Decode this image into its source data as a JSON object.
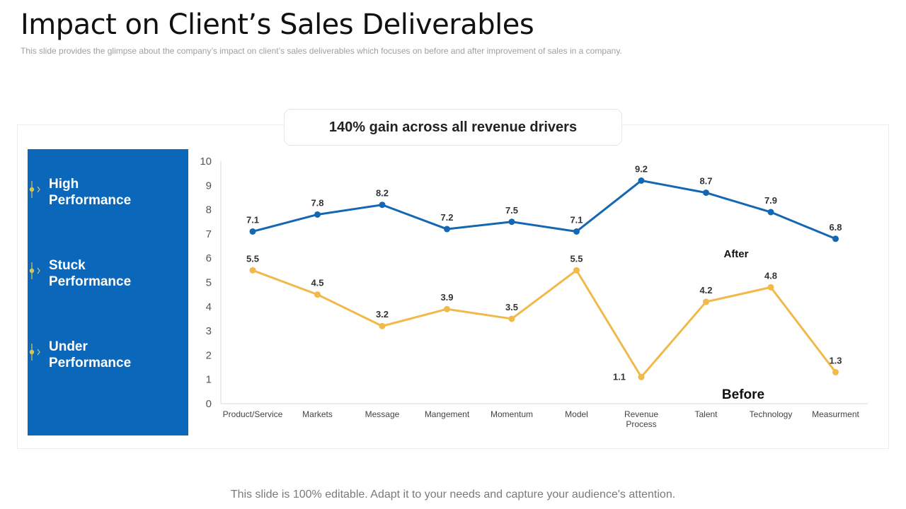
{
  "page": {
    "title": "Impact on Client’s Sales Deliverables",
    "subtitle": "This slide provides  the glimpse about the company’s impact on client’s sales deliverables  which focuses on before  and after improvement  of sales in a company.",
    "banner": "140% gain across all revenue drivers",
    "footer": "This slide is 100% editable. Adapt it to your needs and capture your audience's attention."
  },
  "sidebar": {
    "items": [
      {
        "line1": "High",
        "line2": "Performance"
      },
      {
        "line1": "Stuck",
        "line2": "Performance"
      },
      {
        "line1": "Under",
        "line2": "Performance"
      }
    ]
  },
  "colors": {
    "after": "#1468b3",
    "before": "#f0b94a",
    "sidebar": "#0a67b9",
    "marker": "#d8c25a"
  },
  "chart_data": {
    "type": "line",
    "categories": [
      [
        "Product/Service"
      ],
      [
        "Markets"
      ],
      [
        "Message"
      ],
      [
        "Mangement"
      ],
      [
        "Momentum"
      ],
      [
        "Model"
      ],
      [
        "Revenue",
        "Process"
      ],
      [
        "Talent"
      ],
      [
        "Technology"
      ],
      [
        "Measurment"
      ]
    ],
    "series": [
      {
        "name": "After",
        "values": [
          7.1,
          7.8,
          8.2,
          7.2,
          7.5,
          7.1,
          9.2,
          8.7,
          7.9,
          6.8
        ]
      },
      {
        "name": "Before",
        "values": [
          5.5,
          4.5,
          3.2,
          3.9,
          3.5,
          5.5,
          1.1,
          4.2,
          4.8,
          1.3
        ]
      }
    ],
    "ylim": [
      0,
      10
    ],
    "yticks": [
      0,
      1,
      2,
      3,
      4,
      5,
      6,
      7,
      8,
      9,
      10
    ],
    "legend_after": "After",
    "legend_before": "Before",
    "grid": false
  }
}
